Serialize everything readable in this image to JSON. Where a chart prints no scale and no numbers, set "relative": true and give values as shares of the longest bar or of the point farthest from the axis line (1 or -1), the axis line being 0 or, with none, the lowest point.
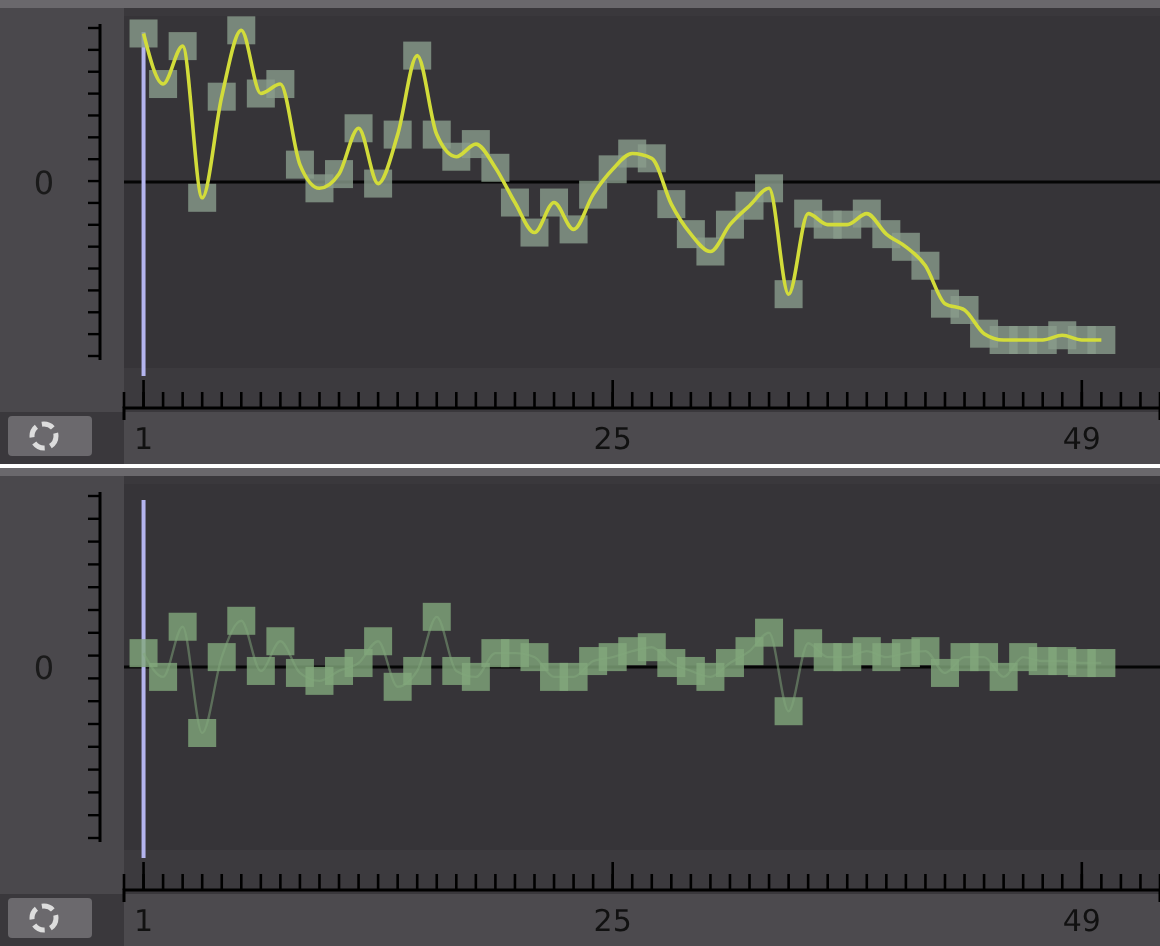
{
  "chart_data": [
    {
      "type": "line",
      "relative": true,
      "marker": "square",
      "line_style": "solid",
      "x": [
        1,
        2,
        3,
        4,
        5,
        6,
        7,
        8,
        9,
        10,
        11,
        12,
        13,
        14,
        15,
        16,
        17,
        18,
        19,
        20,
        21,
        22,
        23,
        24,
        25,
        26,
        27,
        28,
        29,
        30,
        31,
        32,
        33,
        34,
        35,
        36,
        37,
        38,
        39,
        40,
        41,
        42,
        43,
        44,
        45,
        46,
        47,
        48,
        49,
        50
      ],
      "xlim": [
        0,
        53
      ],
      "xticks": [
        1,
        25,
        49
      ],
      "ref_lines": [
        {
          "axis": "y",
          "value": 0,
          "label": "0",
          "color": "#050505"
        },
        {
          "axis": "x",
          "value": 1,
          "color": "#b4b4ee"
        }
      ],
      "series": [
        {
          "color": "#d2dc3a",
          "values": [
            0.94,
            0.62,
            0.86,
            -0.1,
            0.54,
            0.96,
            0.56,
            0.62,
            0.11,
            -0.04,
            0.05,
            0.34,
            -0.01,
            0.3,
            0.8,
            0.3,
            0.16,
            0.24,
            0.09,
            -0.13,
            -0.32,
            -0.13,
            -0.3,
            -0.08,
            0.08,
            0.18,
            0.15,
            -0.14,
            -0.33,
            -0.44,
            -0.27,
            -0.15,
            -0.04,
            -0.71,
            -0.2,
            -0.27,
            -0.27,
            -0.2,
            -0.33,
            -0.41,
            -0.53,
            -0.77,
            -0.81,
            -0.96,
            -1,
            -1,
            -1,
            -0.97,
            -1,
            -1
          ]
        }
      ]
    },
    {
      "type": "line",
      "relative": true,
      "marker": "square",
      "line_style": "solid",
      "x": [
        1,
        2,
        3,
        4,
        5,
        6,
        7,
        8,
        9,
        10,
        11,
        12,
        13,
        14,
        15,
        16,
        17,
        18,
        19,
        20,
        21,
        22,
        23,
        24,
        25,
        26,
        27,
        28,
        29,
        30,
        31,
        32,
        33,
        34,
        35,
        36,
        37,
        38,
        39,
        40,
        41,
        42,
        43,
        44,
        45,
        46,
        47,
        48,
        49,
        50
      ],
      "xlim": [
        0,
        53
      ],
      "xticks": [
        1,
        25,
        49
      ],
      "ref_lines": [
        {
          "axis": "y",
          "value": 0,
          "label": "0",
          "color": "#050505"
        },
        {
          "axis": "x",
          "value": 1,
          "color": "#b4b4ee"
        }
      ],
      "series": [
        {
          "color": "#82a87c",
          "values": [
            0.21,
            -0.15,
            0.61,
            -1,
            0.15,
            0.7,
            -0.06,
            0.39,
            -0.09,
            -0.21,
            -0.06,
            0.06,
            0.39,
            -0.3,
            -0.06,
            0.76,
            -0.06,
            -0.15,
            0.21,
            0.21,
            0.15,
            -0.15,
            -0.15,
            0.09,
            0.15,
            0.24,
            0.3,
            0.06,
            -0.06,
            -0.15,
            0.06,
            0.24,
            0.52,
            -0.67,
            0.36,
            0.15,
            0.15,
            0.24,
            0.15,
            0.21,
            0.24,
            -0.09,
            0.15,
            0.15,
            -0.15,
            0.15,
            0.09,
            0.09,
            0.06,
            0.06
          ]
        }
      ]
    }
  ]
}
